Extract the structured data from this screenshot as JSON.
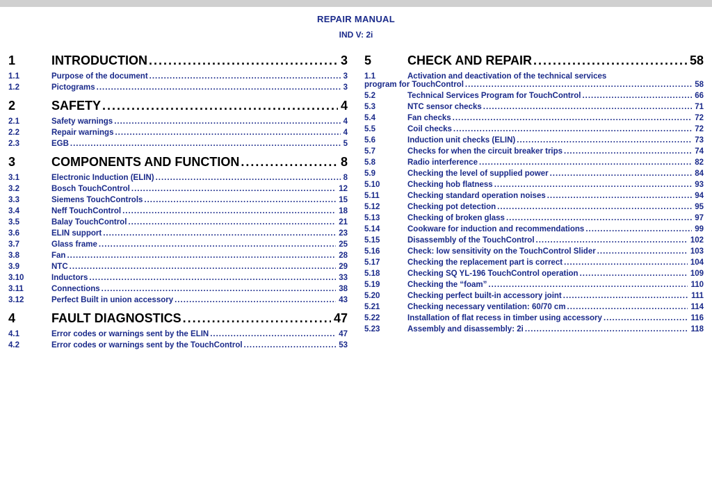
{
  "header": {
    "title": "REPAIR MANUAL",
    "sub": "IND V: 2i"
  },
  "colors": {
    "heading": "#000000",
    "sub": "#1a2a8a",
    "bg": "#ffffff",
    "topbar": "#d0d0d0"
  },
  "left": {
    "sections": [
      {
        "num": "1",
        "title": "INTRODUCTION",
        "page": "3",
        "subs": [
          {
            "num": "1.1",
            "title": "Purpose of the document",
            "page": "3"
          },
          {
            "num": "1.2",
            "title": "Pictograms",
            "page": "3"
          }
        ]
      },
      {
        "num": "2",
        "title": "SAFETY",
        "page": "4",
        "subs": [
          {
            "num": "2.1",
            "title": "Safety warnings",
            "page": "4"
          },
          {
            "num": "2.2",
            "title": "Repair warnings",
            "page": "4"
          },
          {
            "num": "2.3",
            "title": "EGB",
            "page": "5"
          }
        ]
      },
      {
        "num": "3",
        "title": "COMPONENTS AND FUNCTION",
        "page": "8",
        "subs": [
          {
            "num": "3.1",
            "title": "Electronic Induction (ELIN)",
            "page": "8"
          },
          {
            "num": "3.2",
            "title": "Bosch TouchControl",
            "page": "12"
          },
          {
            "num": "3.3",
            "title": "Siemens TouchControls",
            "page": "15"
          },
          {
            "num": "3.4",
            "title": "Neff TouchControl",
            "page": "18"
          },
          {
            "num": "3.5",
            "title": "Balay TouchControl",
            "page": "21"
          },
          {
            "num": "3.6",
            "title": "ELIN support",
            "page": "23"
          },
          {
            "num": "3.7",
            "title": "Glass frame",
            "page": "25"
          },
          {
            "num": "3.8",
            "title": "Fan",
            "page": "28"
          },
          {
            "num": "3.9",
            "title": "NTC",
            "page": "29"
          },
          {
            "num": "3.10",
            "title": "Inductors",
            "page": "33"
          },
          {
            "num": "3.11",
            "title": "Connections",
            "page": "38"
          },
          {
            "num": "3.12",
            "title": "Perfect Built in union accessory",
            "page": "43"
          }
        ]
      },
      {
        "num": "4",
        "title": "FAULT DIAGNOSTICS",
        "page": "47",
        "subs": [
          {
            "num": "4.1",
            "title": "Error codes or warnings sent by the ELIN",
            "page": "47"
          },
          {
            "num": "4.2",
            "title": "Error codes or warnings sent by the TouchControl",
            "page": "53"
          }
        ]
      }
    ]
  },
  "right": {
    "sections": [
      {
        "num": "5",
        "title": "CHECK AND  REPAIR",
        "page": "58",
        "wrap_sub": {
          "num": "1.1",
          "line1": "Activation and deactivation of the technical services",
          "line2": "program for TouchControl",
          "page": "58"
        },
        "subs": [
          {
            "num": "5.2",
            "title": "Technical Services Program for TouchControl",
            "page": "66"
          },
          {
            "num": "5.3",
            "title": "NTC sensor checks",
            "page": "71"
          },
          {
            "num": "5.4",
            "title": "Fan checks",
            "page": "72"
          },
          {
            "num": "5.5",
            "title": "Coil checks",
            "page": "72"
          },
          {
            "num": "5.6",
            "title": "Induction unit checks (ELIN)",
            "page": "73"
          },
          {
            "num": "5.7",
            "title": "Checks for when the circuit breaker trips",
            "page": "74"
          },
          {
            "num": "5.8",
            "title": "Radio interference",
            "page": "82"
          },
          {
            "num": "5.9",
            "title": "Checking the level of supplied power",
            "page": "84"
          },
          {
            "num": "5.10",
            "title": "Checking hob flatness",
            "page": "93"
          },
          {
            "num": "5.11",
            "title": "Checking standard operation noises",
            "page": "94"
          },
          {
            "num": "5.12",
            "title": "Checking pot detection",
            "page": "95"
          },
          {
            "num": "5.13",
            "title": "Checking of broken glass",
            "page": "97"
          },
          {
            "num": "5.14",
            "title": "Cookware for induction and recommendations",
            "page": "99"
          },
          {
            "num": "5.15",
            "title": "Disassembly of the TouchControl",
            "page": "102"
          },
          {
            "num": "5.16",
            "title": "Check: low sensitivity on the TouchControl Slider",
            "page": "103"
          },
          {
            "num": "5.17",
            "title": "Checking the replacement part is correct",
            "page": "104"
          },
          {
            "num": "5.18",
            "title": "Checking SQ YL-196 TouchControl operation",
            "page": "109"
          },
          {
            "num": "5.19",
            "title": "Checking the “foam”",
            "page": "110"
          },
          {
            "num": "5.20",
            "title": "Checking perfect built-in accessory joint",
            "page": "111"
          },
          {
            "num": "5.21",
            "title": "Checking necessary ventilation: 60/70 cm",
            "page": "114"
          },
          {
            "num": "5.22",
            "title": "Installation of flat recess in timber using accessory",
            "page": "116"
          },
          {
            "num": "5.23",
            "title": "Assembly and disassembly: 2i",
            "page": "118"
          }
        ]
      }
    ]
  }
}
